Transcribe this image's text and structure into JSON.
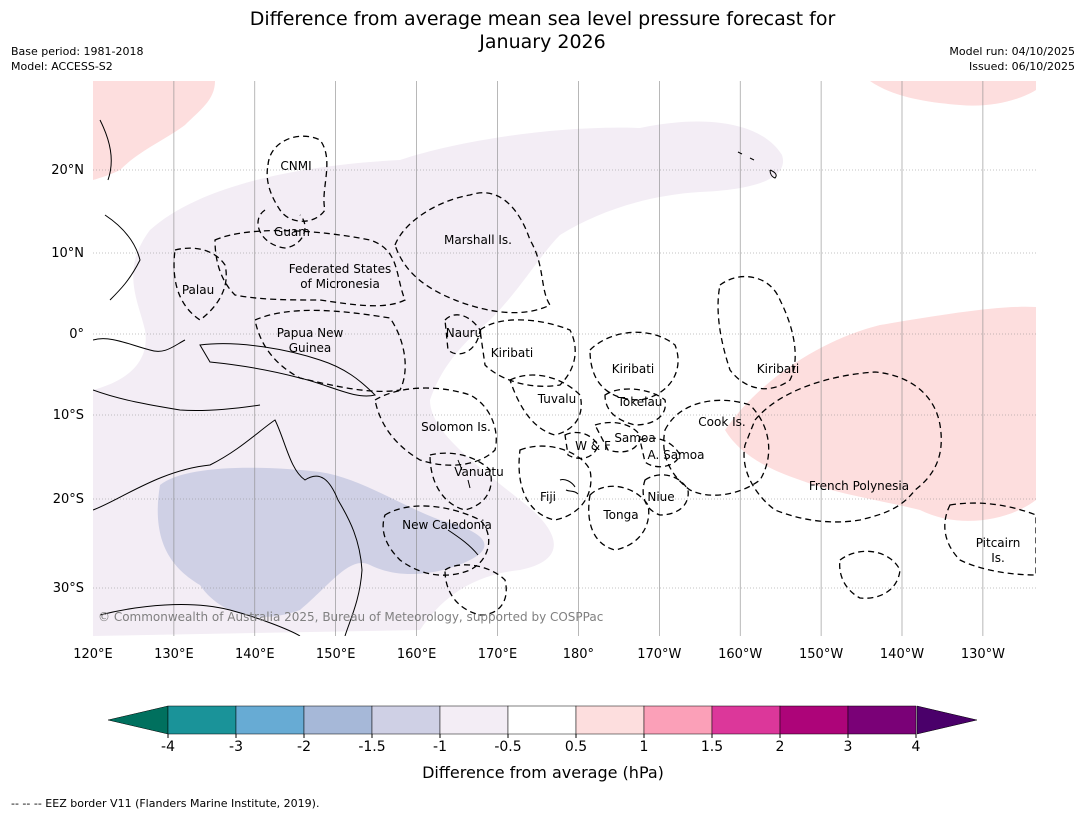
{
  "title_line1": "Difference from average mean sea level pressure forecast for",
  "title_line2": "January 2026",
  "meta_left": [
    "Base period: 1981-2018",
    "Model: ACCESS-S2"
  ],
  "meta_right": [
    "Model run: 04/10/2025",
    "Issued: 06/10/2025"
  ],
  "map": {
    "lon_labels": [
      "120°E",
      "130°E",
      "140°E",
      "150°E",
      "160°E",
      "170°E",
      "180°",
      "170°W",
      "160°W",
      "150°W",
      "140°W",
      "130°W"
    ],
    "lat_labels": [
      "20°N",
      "10°N",
      "0°",
      "10°S",
      "20°S",
      "30°S"
    ],
    "copyright": "© Commonwealth of Australia 2025, Bureau of Meteorology, supported by COSPPac",
    "places": [
      "CNMI",
      "Guam",
      "Marshall Is.",
      "Federated States",
      "of Micronesia",
      "Palau",
      "Papua New",
      "Guinea",
      "Nauru",
      "Kiribati",
      "Kiribati",
      "Kiribati",
      "Tuvalu",
      "Tokelau",
      "Solomon Is.",
      "Cook Is.",
      "Samoa",
      "W & F",
      "A. Samoa",
      "Vanuatu",
      "Fiji",
      "Niue",
      "Tonga",
      "French Polynesia",
      "New Caledonia",
      "Pitcairn",
      "Is."
    ]
  },
  "colorbar": {
    "title": "Difference from average (hPa)",
    "ticks": [
      "-4",
      "-3",
      "-2",
      "-1.5",
      "-1",
      "-0.5",
      "0.5",
      "1",
      "1.5",
      "2",
      "3",
      "4"
    ],
    "colors": {
      "under": "#00705e",
      "bins": [
        "#1a9399",
        "#67abd4",
        "#a6b8d8",
        "#cfd0e5",
        "#f3edf5",
        "#ffffff",
        "#fddede",
        "#fba0b8",
        "#dc379a",
        "#ad0479",
        "#7a0177"
      ],
      "over": "#4a006a"
    }
  },
  "footnote": "--  --  -- EEZ border V11 (Flanders Marine Institute, 2019)."
}
